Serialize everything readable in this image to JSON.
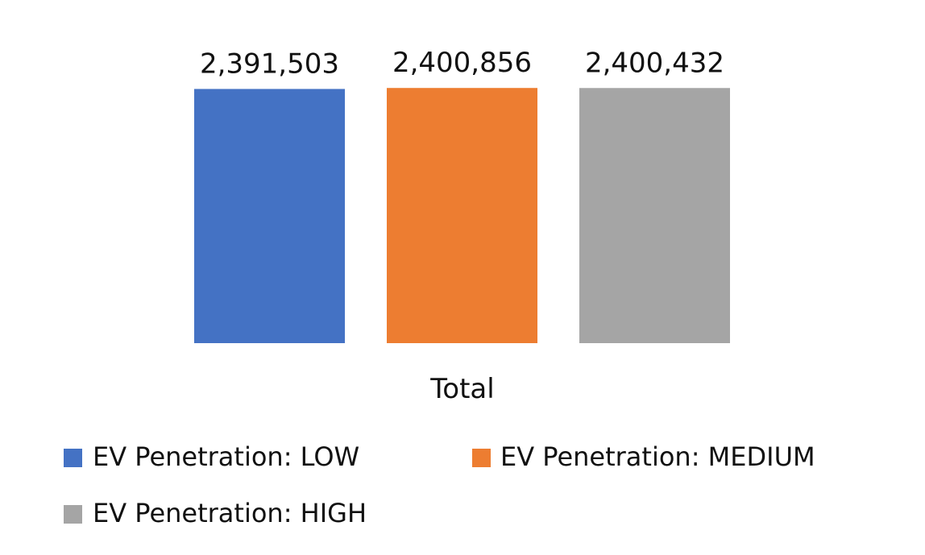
{
  "chart_data": {
    "type": "bar",
    "title": "",
    "xlabel": "",
    "ylabel": "",
    "categories": [
      "Total"
    ],
    "series": [
      {
        "name": "EV Penetration: LOW",
        "values": [
          2391503
        ],
        "label": "2,391,503",
        "color": "#4472C4"
      },
      {
        "name": "EV Penetration: MEDIUM",
        "values": [
          2400856
        ],
        "label": "2,400,856",
        "color": "#ED7D31"
      },
      {
        "name": "EV Penetration: HIGH",
        "values": [
          2400432
        ],
        "label": "2,400,432",
        "color": "#A5A5A5"
      }
    ],
    "ylim": [
      0,
      2410000
    ],
    "grid": false,
    "legend_position": "bottom"
  }
}
